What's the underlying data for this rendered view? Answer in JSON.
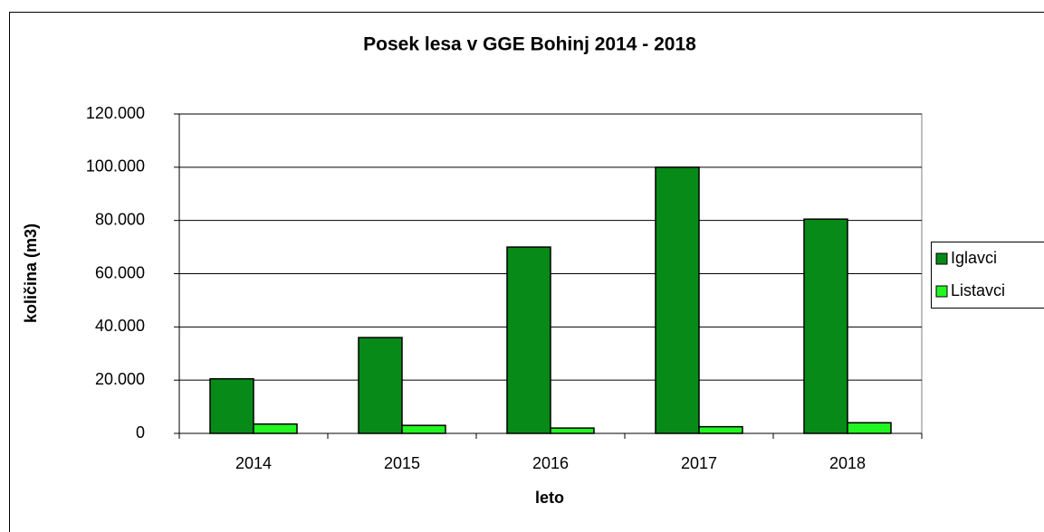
{
  "chart_data": {
    "type": "bar",
    "title": "Posek lesa v GGE Bohinj 2014 - 2018",
    "x_label": "leto",
    "y_label": "količina (m3)",
    "categories": [
      "2014",
      "2015",
      "2016",
      "2017",
      "2018"
    ],
    "series": [
      {
        "name": "Iglavci",
        "color": "#078a17",
        "values": [
          20500,
          36000,
          70000,
          100000,
          80500
        ]
      },
      {
        "name": "Listavci",
        "color": "#22f522",
        "values": [
          3500,
          3000,
          2000,
          2500,
          4000
        ]
      }
    ],
    "ylim": [
      0,
      120000
    ],
    "yticks": [
      0,
      {
        "value": 20000,
        "label": "20.000"
      },
      {
        "value": 40000,
        "label": "40.000"
      },
      {
        "value": 60000,
        "label": "60.000"
      },
      {
        "value": 80000,
        "label": "80.000"
      },
      {
        "value": 100000,
        "label": "100.000"
      },
      {
        "value": 120000,
        "label": "120.000"
      }
    ],
    "grid": true,
    "legend": "right"
  }
}
